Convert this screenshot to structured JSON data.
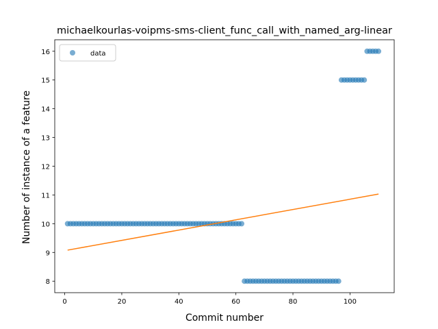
{
  "chart_data": {
    "type": "scatter",
    "title": "michaelkourlas-voipms-sms-client_func_call_with_named_arg-linear",
    "xlabel": "Commit number",
    "ylabel": "Number of instance of a feature",
    "xlim": [
      -3.5,
      115.5
    ],
    "ylim": [
      7.6,
      16.4
    ],
    "xticks": [
      0,
      20,
      40,
      60,
      80,
      100
    ],
    "yticks": [
      8,
      9,
      10,
      11,
      12,
      13,
      14,
      15,
      16
    ],
    "grid": false,
    "legend": {
      "position": "top-left",
      "entries": [
        "data"
      ]
    },
    "colors": {
      "data": "#1f77b4",
      "fit": "#ff7f0e"
    },
    "series": [
      {
        "name": "data",
        "segments": [
          {
            "x_from": 1,
            "x_to": 62,
            "y": 10
          },
          {
            "x_from": 63,
            "x_to": 96,
            "y": 8
          },
          {
            "x_from": 97,
            "x_to": 105,
            "y": 15
          },
          {
            "x_from": 106,
            "x_to": 110,
            "y": 16
          }
        ]
      },
      {
        "fit_line": {
          "x": [
            1,
            110
          ],
          "y": [
            9.08,
            11.03
          ]
        }
      }
    ]
  }
}
